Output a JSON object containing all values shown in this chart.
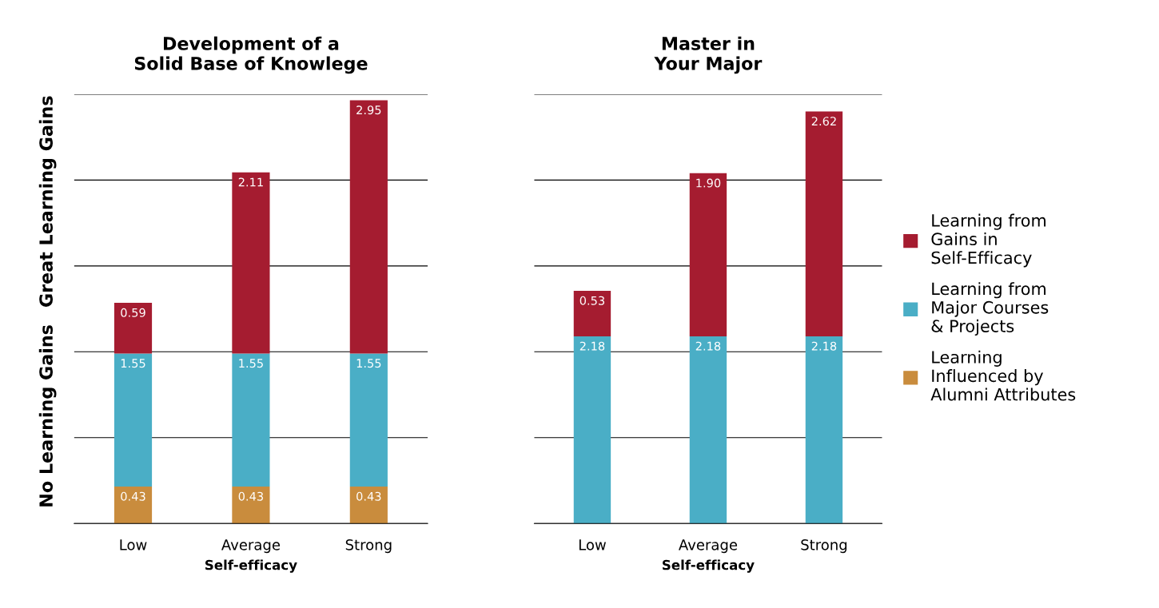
{
  "chart_data": [
    {
      "type": "bar",
      "title": "Development of a\nSolid Base of Knowlege",
      "xlabel": "Self-efficacy",
      "categories": [
        "Low",
        "Average",
        "Strong"
      ],
      "stacked": true,
      "ylim": [
        0,
        5
      ],
      "yticks": [
        {
          "value": 0,
          "label": null
        },
        {
          "value": 1,
          "label": null
        },
        {
          "value": 2,
          "label": null
        },
        {
          "value": 3,
          "label": null
        },
        {
          "value": 4,
          "label": null
        },
        {
          "value": 5,
          "label": null
        }
      ],
      "grid": "y",
      "tick_labels": "x",
      "legend": false,
      "annotations": [
        "No Learning Gains",
        "Great Learning Gains"
      ],
      "series": [
        {
          "color": "#c98c3d",
          "values": [
            0.43,
            0.43,
            0.43
          ],
          "value_labels": [
            "0.43",
            "0.43",
            "0.43"
          ]
        },
        {
          "color": "#4aaec6",
          "values": [
            1.55,
            1.55,
            1.55
          ],
          "value_labels": [
            "1.55",
            "1.55",
            "1.55"
          ]
        },
        {
          "color": "#a51c30",
          "values": [
            0.59,
            2.11,
            2.95
          ],
          "value_labels": [
            "0.59",
            "2.11",
            "2.95"
          ]
        }
      ]
    },
    {
      "type": "bar",
      "title": "Master in\nYour Major",
      "xlabel": "Self-efficacy",
      "categories": [
        "Low",
        "Average",
        "Strong"
      ],
      "stacked": true,
      "ylim": [
        0,
        5
      ],
      "yticks": [
        {
          "value": 0,
          "label": null
        },
        {
          "value": 1,
          "label": null
        },
        {
          "value": 2,
          "label": null
        },
        {
          "value": 3,
          "label": null
        },
        {
          "value": 4,
          "label": null
        },
        {
          "value": 5,
          "label": null
        }
      ],
      "grid": "y",
      "tick_labels": "x",
      "legend": "right",
      "series": [
        {
          "name": "Learning Influenced by Alumni Attributes",
          "color": "#c98c3d",
          "values": [
            null,
            null,
            null
          ],
          "value_labels": [
            null,
            null,
            null
          ]
        },
        {
          "name": "Learning from Major Courses & Projects",
          "color": "#4aaec6",
          "values": [
            2.18,
            2.18,
            2.18
          ],
          "value_labels": [
            "2.18",
            "2.18",
            "2.18"
          ]
        },
        {
          "name": "Learning from Gains in Self-Efficacy",
          "color": "#a51c30",
          "values": [
            0.53,
            1.9,
            2.62
          ],
          "value_labels": [
            "0.53",
            "1.90",
            "2.62"
          ]
        }
      ]
    }
  ]
}
